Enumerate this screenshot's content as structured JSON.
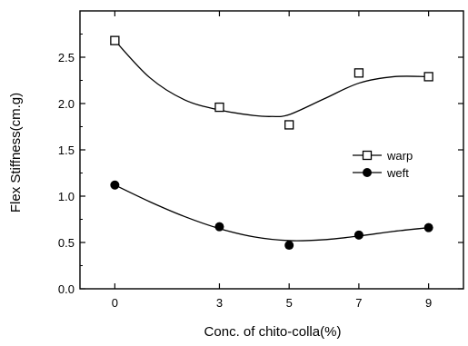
{
  "chart_data": {
    "type": "scatter",
    "title": "",
    "xlabel": "Conc. of chito-colla(%)",
    "ylabel": "Flex Stiffness(cm.g)",
    "x_categories": [
      "0",
      "3",
      "5",
      "7",
      "9"
    ],
    "x": [
      0,
      3,
      5,
      7,
      9
    ],
    "xlim": [
      -1,
      10
    ],
    "ylim": [
      0.0,
      3.0
    ],
    "yticks": [
      "0.0",
      "0.5",
      "1.0",
      "1.5",
      "2.0",
      "2.5"
    ],
    "ytick_values": [
      0.0,
      0.5,
      1.0,
      1.5,
      2.0,
      2.5
    ],
    "grid": false,
    "legend_position": "right-middle",
    "series": [
      {
        "name": "warp",
        "marker": "open-square",
        "values": [
          2.68,
          1.96,
          1.77,
          2.33,
          2.29
        ],
        "curve": [
          [
            0,
            2.68
          ],
          [
            1,
            2.28
          ],
          [
            2,
            2.04
          ],
          [
            3,
            1.93
          ],
          [
            4,
            1.87
          ],
          [
            4.5,
            1.86
          ],
          [
            5,
            1.88
          ],
          [
            6,
            2.05
          ],
          [
            7,
            2.22
          ],
          [
            8,
            2.29
          ],
          [
            9,
            2.29
          ]
        ]
      },
      {
        "name": "weft",
        "marker": "filled-circle",
        "values": [
          1.12,
          0.67,
          0.47,
          0.58,
          0.66
        ],
        "curve": [
          [
            0,
            1.12
          ],
          [
            1,
            0.94
          ],
          [
            2,
            0.78
          ],
          [
            3,
            0.65
          ],
          [
            4,
            0.56
          ],
          [
            5,
            0.52
          ],
          [
            6,
            0.53
          ],
          [
            7,
            0.57
          ],
          [
            8,
            0.62
          ],
          [
            9,
            0.66
          ]
        ]
      }
    ]
  }
}
